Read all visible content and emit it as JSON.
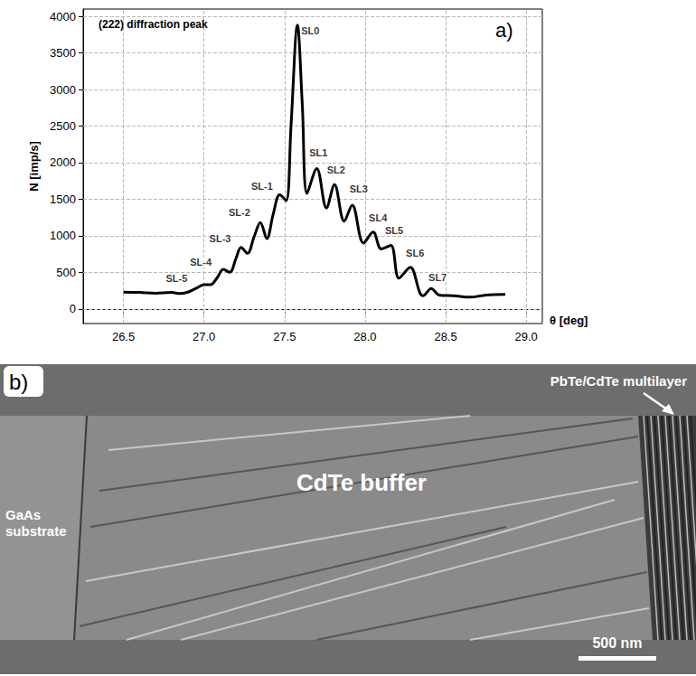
{
  "chart_data": {
    "type": "line",
    "title": "(222) diffraction peak",
    "panel_label": "a)",
    "x_label": "θ [deg]",
    "y_label": "N [imp/s]",
    "x": [
      26.5,
      26.6,
      26.7,
      26.8,
      26.85,
      26.9,
      26.95,
      27.0,
      27.04,
      27.08,
      27.12,
      27.16,
      27.2,
      27.23,
      27.27,
      27.31,
      27.35,
      27.39,
      27.43,
      27.47,
      27.51,
      27.54,
      27.58,
      27.61,
      27.64,
      27.7,
      27.76,
      27.81,
      27.87,
      27.92,
      27.99,
      28.05,
      28.1,
      28.16,
      28.21,
      28.28,
      28.34,
      28.36,
      28.41,
      28.46,
      28.55,
      28.65,
      28.75,
      28.87
    ],
    "values": [
      230,
      225,
      215,
      225,
      210,
      230,
      280,
      330,
      330,
      420,
      540,
      500,
      700,
      840,
      760,
      980,
      1180,
      960,
      1300,
      1560,
      1480,
      2500,
      3880,
      2800,
      1580,
      1920,
      1380,
      1700,
      1200,
      1420,
      900,
      1050,
      820,
      870,
      420,
      570,
      220,
      180,
      280,
      190,
      180,
      160,
      190,
      200
    ],
    "color": "#000000",
    "xlim": [
      26.25,
      29.1
    ],
    "xticks": [
      26.5,
      {
        "value": 27,
        "label": "27.0"
      },
      27.5,
      {
        "value": 28,
        "label": "28.0"
      },
      28.5,
      {
        "value": 29,
        "label": "29.0"
      }
    ],
    "ylim": [
      -200,
      4100
    ],
    "yticks": [
      0,
      500,
      1000,
      1500,
      2000,
      2500,
      3000,
      3500,
      4000
    ],
    "grid": true,
    "annotations": [
      {
        "text": "SL0",
        "x": 27.66,
        "y": 3800
      },
      {
        "text": "SL1",
        "x": 27.71,
        "y": 2130
      },
      {
        "text": "SL2",
        "x": 27.82,
        "y": 1900
      },
      {
        "text": "SL3",
        "x": 27.96,
        "y": 1640
      },
      {
        "text": "SL4",
        "x": 28.08,
        "y": 1250
      },
      {
        "text": "SL5",
        "x": 28.18,
        "y": 1070
      },
      {
        "text": "SL6",
        "x": 28.31,
        "y": 760
      },
      {
        "text": "SL7",
        "x": 28.45,
        "y": 430
      },
      {
        "text": "SL-1",
        "x": 27.36,
        "y": 1680
      },
      {
        "text": "SL-2",
        "x": 27.22,
        "y": 1320
      },
      {
        "text": "SL-3",
        "x": 27.1,
        "y": 960
      },
      {
        "text": "SL-4",
        "x": 26.98,
        "y": 640
      },
      {
        "text": "SL-5",
        "x": 26.83,
        "y": 420
      }
    ]
  },
  "image_panel": {
    "label": "b)",
    "multilayer": "PbTe/CdTe multilayer",
    "buffer": "CdTe buffer",
    "substrate": "GaAs substrate",
    "scale_bar": "500 nm"
  }
}
